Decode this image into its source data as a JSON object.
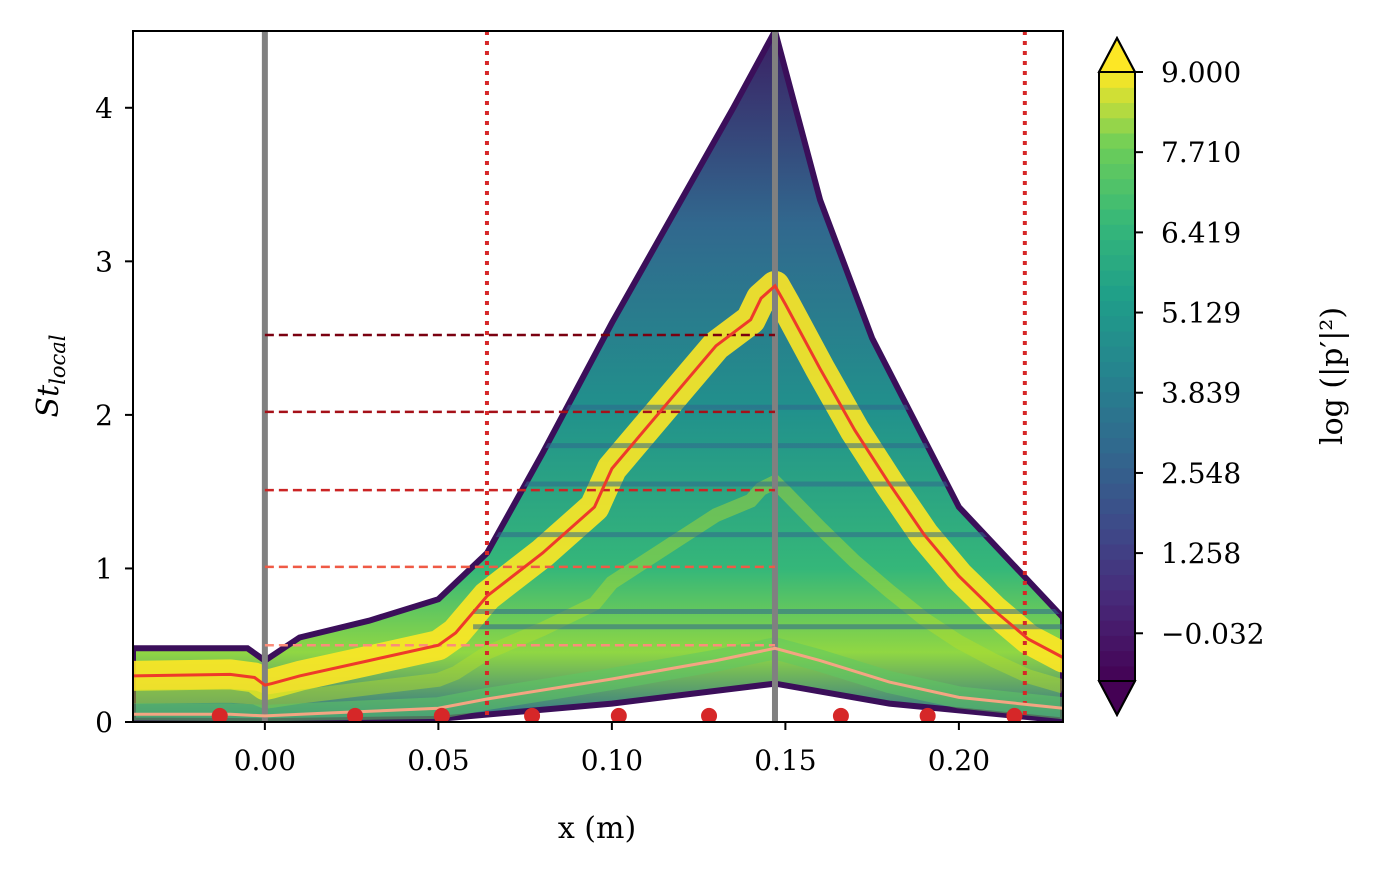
{
  "chart_data": {
    "type": "heatmap",
    "title": "",
    "xlabel": "x (m)",
    "ylabel": "St_local",
    "ylabel_main": "St",
    "ylabel_sub": "local",
    "xlim": [
      -0.038,
      0.23
    ],
    "ylim": [
      0,
      4.5
    ],
    "xticks": [
      0.0,
      0.05,
      0.1,
      0.15,
      0.2
    ],
    "xtick_labels": [
      "0.00",
      "0.05",
      "0.10",
      "0.15",
      "0.20"
    ],
    "yticks": [
      0,
      1,
      2,
      3,
      4
    ],
    "ytick_labels": [
      "0",
      "1",
      "2",
      "3",
      "4"
    ],
    "colorbar": {
      "label": "log (|p′|²)",
      "range": [
        -0.8,
        9.0
      ],
      "extend": "both",
      "ticks": [
        9.0,
        7.71,
        6.419,
        5.129,
        3.839,
        2.548,
        1.258,
        -0.032
      ],
      "tick_labels": [
        "9.000",
        "7.710",
        "6.419",
        "5.129",
        "3.839",
        "2.548",
        "1.258",
        "−0.032"
      ]
    },
    "field_envelope": {
      "upper": [
        [
          -0.038,
          0.48
        ],
        [
          -0.005,
          0.48
        ],
        [
          0.0,
          0.4
        ],
        [
          0.01,
          0.55
        ],
        [
          0.03,
          0.66
        ],
        [
          0.05,
          0.8
        ],
        [
          0.064,
          1.1
        ],
        [
          0.08,
          1.75
        ],
        [
          0.1,
          2.6
        ],
        [
          0.12,
          3.4
        ],
        [
          0.135,
          4.0
        ],
        [
          0.147,
          4.5
        ],
        [
          0.16,
          3.4
        ],
        [
          0.175,
          2.5
        ],
        [
          0.2,
          1.4
        ],
        [
          0.23,
          0.68
        ]
      ],
      "lower": [
        [
          -0.038,
          0.01
        ],
        [
          0.0,
          0.005
        ],
        [
          0.05,
          0.02
        ],
        [
          0.1,
          0.12
        ],
        [
          0.147,
          0.25
        ],
        [
          0.18,
          0.12
        ],
        [
          0.23,
          0.01
        ]
      ]
    },
    "ridge_bands": [
      0.62,
      0.72,
      1.22,
      1.55,
      1.8,
      2.05
    ],
    "vertical_lines": [
      {
        "name": "gray-line-1",
        "x": 0.0,
        "color": "#808080",
        "style": "solid"
      },
      {
        "name": "gray-line-2",
        "x": 0.147,
        "color": "#808080",
        "style": "solid"
      },
      {
        "name": "red-dotted-line-1",
        "x": 0.064,
        "color": "#d62728",
        "style": "dotted"
      },
      {
        "name": "red-dotted-line-2",
        "x": 0.219,
        "color": "#d62728",
        "style": "dotted"
      }
    ],
    "horizontal_lines": [
      {
        "y": 0.5,
        "x_range": [
          0.0,
          0.147
        ],
        "color": "#fc8d7a"
      },
      {
        "y": 1.01,
        "x_range": [
          0.0,
          0.147
        ],
        "color": "#ef5a45"
      },
      {
        "y": 1.51,
        "x_range": [
          0.0,
          0.147
        ],
        "color": "#cb2424"
      },
      {
        "y": 2.02,
        "x_range": [
          0.0,
          0.147
        ],
        "color": "#a51018"
      },
      {
        "y": 2.52,
        "x_range": [
          0.0,
          0.147
        ],
        "color": "#7a0010"
      }
    ],
    "series": [
      {
        "name": "fundamental-frequency",
        "color": "#ee3a2a",
        "x": [
          -0.038,
          -0.01,
          -0.003,
          0.0,
          0.002,
          0.01,
          0.03,
          0.05,
          0.055,
          0.064,
          0.08,
          0.095,
          0.1,
          0.115,
          0.13,
          0.14,
          0.143,
          0.147,
          0.15,
          0.16,
          0.17,
          0.18,
          0.19,
          0.2,
          0.21,
          0.22,
          0.23
        ],
        "y": [
          0.3,
          0.31,
          0.29,
          0.24,
          0.25,
          0.3,
          0.4,
          0.5,
          0.58,
          0.82,
          1.1,
          1.4,
          1.65,
          2.05,
          2.45,
          2.62,
          2.76,
          2.84,
          2.72,
          2.3,
          1.9,
          1.55,
          1.22,
          0.95,
          0.73,
          0.54,
          0.42
        ]
      },
      {
        "name": "low-frequency",
        "color": "#f4a582",
        "x": [
          -0.038,
          -0.01,
          0.0,
          0.02,
          0.05,
          0.064,
          0.1,
          0.13,
          0.147,
          0.16,
          0.18,
          0.2,
          0.23
        ],
        "y": [
          0.05,
          0.05,
          0.04,
          0.06,
          0.09,
          0.15,
          0.28,
          0.4,
          0.48,
          0.4,
          0.26,
          0.16,
          0.09
        ]
      }
    ],
    "markers": {
      "color": "#d62728",
      "x": [
        -0.013,
        0.026,
        0.051,
        0.077,
        0.102,
        0.128,
        0.166,
        0.191,
        0.216
      ],
      "y": [
        0.04,
        0.04,
        0.04,
        0.04,
        0.04,
        0.04,
        0.04,
        0.04,
        0.04
      ]
    }
  }
}
